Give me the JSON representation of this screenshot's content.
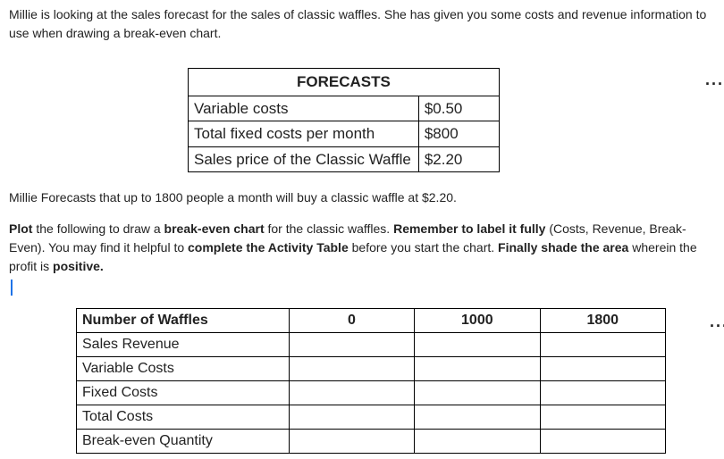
{
  "intro": "Millie is looking at the sales forecast for the sales of classic waffles. She has given you some costs and revenue information to use when drawing a break-even chart.",
  "forecasts": {
    "header": "FORECASTS",
    "rows": [
      {
        "label": "Variable costs",
        "value": "$0.50"
      },
      {
        "label": "Total fixed costs per month",
        "value": "$800"
      },
      {
        "label": "Sales price of the Classic Waffle",
        "value": "$2.20"
      }
    ]
  },
  "mid": "Millie Forecasts that up to 1800 people a month will buy a classic waffle at $2.20.",
  "instr": {
    "p1a": "Plot",
    "p1b": " the following to draw a ",
    "p1c": "break-even chart",
    "p1d": " for the classic waffles. ",
    "p1e": "Remember to label it fully",
    "p1f": " (Costs, Revenue, Break-Even). You may find it helpful to ",
    "p1g": "complete the Activity Table",
    "p1h": " before you start the chart. ",
    "p1i": "Finally shade the area",
    "p1j": " wherein the profit is ",
    "p1k": "positive."
  },
  "activity": {
    "header_row": [
      "Number of Waffles",
      "0",
      "1000",
      "1800"
    ],
    "rows": [
      "Sales Revenue",
      "Variable Costs",
      "Fixed Costs",
      "Total Costs",
      "Break-even Quantity"
    ]
  },
  "ellipsis": "..."
}
